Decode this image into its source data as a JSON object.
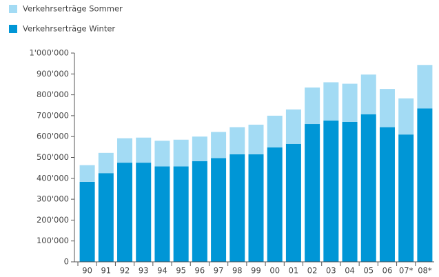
{
  "chart_data": {
    "type": "stacked_bar",
    "categories": [
      "90",
      "91",
      "92",
      "93",
      "94",
      "95",
      "96",
      "97",
      "98",
      "99",
      "00",
      "01",
      "02",
      "03",
      "04",
      "05",
      "06",
      "07*",
      "08*"
    ],
    "series": [
      {
        "name": "Verkehrserträge Winter",
        "color": "#0096d6",
        "values": [
          383000,
          425000,
          475000,
          475000,
          457000,
          457000,
          482000,
          497000,
          515000,
          515000,
          548000,
          565000,
          660000,
          677000,
          670000,
          707000,
          645000,
          610000,
          735000
        ]
      },
      {
        "name": "Verkehrserträge Sommer",
        "color": "#a3dbf4",
        "values": [
          80000,
          97000,
          117000,
          120000,
          123000,
          128000,
          118000,
          125000,
          130000,
          142000,
          152000,
          165000,
          175000,
          183000,
          183000,
          190000,
          183000,
          173000,
          208000
        ]
      }
    ],
    "legend_order": [
      1,
      0
    ],
    "ylim": [
      0,
      1000000
    ],
    "yticks": [
      0,
      {
        "value": 100000,
        "label": "100'000"
      },
      {
        "value": 200000,
        "label": "200'000"
      },
      {
        "value": 300000,
        "label": "300'000"
      },
      {
        "value": 400000,
        "label": "400'000"
      },
      {
        "value": 500000,
        "label": "500'000"
      },
      {
        "value": 600000,
        "label": "600'000"
      },
      {
        "value": 700000,
        "label": "700'000"
      },
      {
        "value": 800000,
        "label": "800'000"
      },
      {
        "value": 900000,
        "label": "900'000"
      },
      {
        "value": 1000000,
        "label": "1'000'000"
      }
    ]
  }
}
